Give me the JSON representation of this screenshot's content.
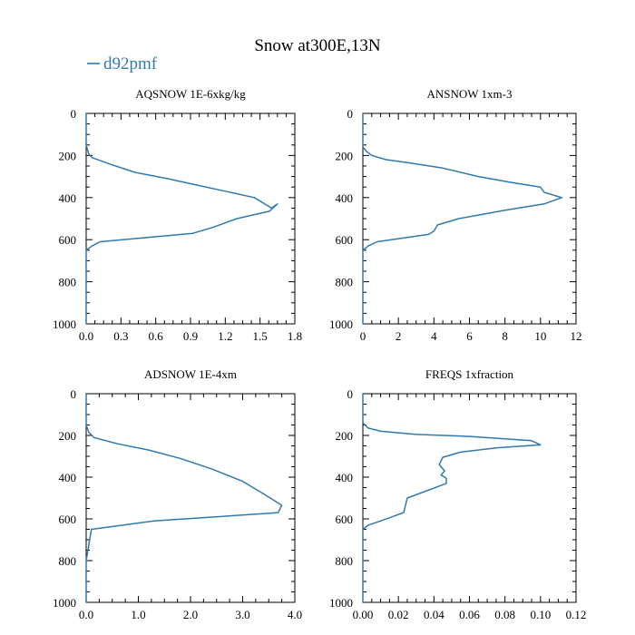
{
  "title": "Snow at300E,13N",
  "legend": {
    "label": "d92pmf",
    "color": "#2f7ab0"
  },
  "line_color": "#2f7ab0",
  "chart_data": [
    {
      "id": "aqsnow",
      "type": "line",
      "title": "AQSNOW  1E-6xkg/kg",
      "series_name": "d92pmf",
      "xlim": [
        0.0,
        1.8
      ],
      "ylim": [
        1000,
        0
      ],
      "xticks": [
        0.0,
        0.3,
        0.6,
        0.9,
        1.2,
        1.5,
        1.8
      ],
      "xtick_labels": [
        "0.0",
        "0.3",
        "0.6",
        "0.9",
        "1.2",
        "1.5",
        "1.8"
      ],
      "yticks": [
        0,
        200,
        400,
        600,
        800,
        1000
      ],
      "ytick_labels": [
        "0",
        "200",
        "400",
        "600",
        "800",
        "1000"
      ],
      "x": [
        0,
        0,
        0.02,
        0.05,
        0.2,
        0.42,
        0.7,
        0.95,
        1.2,
        1.45,
        1.6,
        1.65,
        1.58,
        1.3,
        1.1,
        0.92,
        0.12,
        0.05,
        0,
        0,
        0
      ],
      "y": [
        0,
        150,
        190,
        210,
        240,
        280,
        310,
        340,
        370,
        400,
        450,
        430,
        465,
        500,
        540,
        570,
        610,
        630,
        650,
        800,
        1000
      ]
    },
    {
      "id": "ansnow",
      "type": "line",
      "title": "ANSNOW  1xm-3",
      "series_name": "d92pmf",
      "xlim": [
        0,
        12
      ],
      "ylim": [
        1000,
        0
      ],
      "xticks": [
        0,
        2,
        4,
        6,
        8,
        10,
        12
      ],
      "xtick_labels": [
        "0",
        "2",
        "4",
        "6",
        "8",
        "10",
        "12"
      ],
      "yticks": [
        0,
        200,
        400,
        600,
        800,
        1000
      ],
      "ytick_labels": [
        "0",
        "200",
        "400",
        "600",
        "800",
        "1000"
      ],
      "x": [
        0,
        0,
        0.2,
        0.5,
        1.3,
        2.6,
        4.5,
        6.5,
        8.5,
        10.0,
        10.2,
        11.2,
        10.2,
        8.0,
        5.4,
        4.2,
        4.0,
        3.7,
        0.8,
        0.3,
        0,
        0,
        0
      ],
      "y": [
        0,
        160,
        180,
        200,
        220,
        235,
        260,
        300,
        330,
        350,
        375,
        400,
        430,
        460,
        500,
        530,
        560,
        575,
        610,
        630,
        650,
        800,
        1000
      ]
    },
    {
      "id": "adsnow",
      "type": "line",
      "title": "ADSNOW  1E-4xm",
      "series_name": "d92pmf",
      "xlim": [
        0.0,
        4.0
      ],
      "ylim": [
        1000,
        0
      ],
      "xticks": [
        0.0,
        1.0,
        2.0,
        3.0,
        4.0
      ],
      "xtick_labels": [
        "0.0",
        "1.0",
        "2.0",
        "3.0",
        "4.0"
      ],
      "yticks": [
        0,
        200,
        400,
        600,
        800,
        1000
      ],
      "ytick_labels": [
        "0",
        "200",
        "400",
        "600",
        "800",
        "1000"
      ],
      "x": [
        0,
        0,
        0.05,
        0.15,
        0.6,
        1.2,
        1.8,
        2.4,
        3.0,
        3.4,
        3.75,
        3.68,
        1.3,
        0.1,
        0,
        0
      ],
      "y": [
        0,
        150,
        185,
        210,
        240,
        270,
        310,
        360,
        420,
        480,
        535,
        570,
        610,
        650,
        800,
        1000
      ]
    },
    {
      "id": "freqs",
      "type": "line",
      "title": "FREQS  1xfraction",
      "series_name": "d92pmf",
      "xlim": [
        0.0,
        0.12
      ],
      "ylim": [
        1000,
        0
      ],
      "xticks": [
        0.0,
        0.02,
        0.04,
        0.06,
        0.08,
        0.1,
        0.12
      ],
      "xtick_labels": [
        "0.00",
        "0.02",
        "0.04",
        "0.06",
        "0.08",
        "0.10",
        "0.12"
      ],
      "yticks": [
        0,
        200,
        400,
        600,
        800,
        1000
      ],
      "ytick_labels": [
        "0",
        "200",
        "400",
        "600",
        "800",
        "1000"
      ],
      "x": [
        0,
        0,
        0.003,
        0.01,
        0.03,
        0.06,
        0.095,
        0.1,
        0.075,
        0.055,
        0.045,
        0.043,
        0.046,
        0.044,
        0.047,
        0.047,
        0.025,
        0.023,
        0.01,
        0.003,
        0,
        0
      ],
      "y": [
        0,
        140,
        165,
        180,
        195,
        205,
        225,
        245,
        260,
        280,
        305,
        340,
        370,
        390,
        405,
        430,
        500,
        570,
        610,
        630,
        650,
        1000
      ]
    }
  ]
}
